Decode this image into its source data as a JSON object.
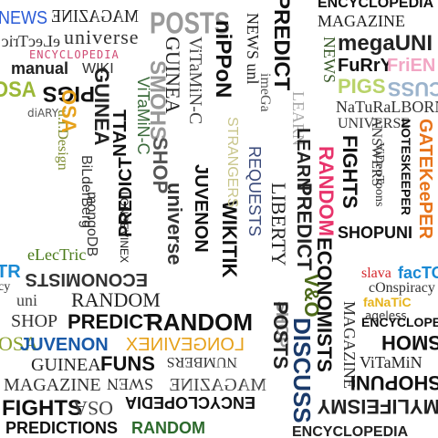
{
  "collage": {
    "words": {
      "news_tl": "NEWS",
      "magazine_tl": "MAGAZINE",
      "posts_top": "POSTS",
      "nippon": "niPPoN",
      "predict_top": "PREDICT",
      "encyclopedia_top": "ENCYCLOPEDIA",
      "electric_tl": "eLecTric",
      "universe_tl": "universe",
      "encyclopedia_pink": "ENCYCLOPEDIA",
      "manual": "manual",
      "wiki": "WIKI",
      "pigs_tl": "PIGS",
      "diary": "diARY",
      "osa": "OSA",
      "guinea_v": "GUINEA",
      "ttan_v": "TTAN",
      "vitamin_v1": "ViTaMiN-C",
      "vitamin_v2": "ViTaMiN-C",
      "bloatware": "bloatWaRe",
      "design": "u.I.Design",
      "bilderberg": "BiLderBerg",
      "mongodb": "mongoDB",
      "electric_v": "eLecTric",
      "predict_v": "PREDICT",
      "longevinex_v": "LONGEVINEX",
      "shop_v": "SHOP",
      "juvenon_v": "JUVENON",
      "universe_v": "universe",
      "wikitik": "WIKITIK",
      "strangers": "STRANGERS",
      "requests": "REQUESTS",
      "liberty": "LIBERTY",
      "news_unl": "NEWS unl",
      "imega": "imeGa",
      "shop_v2": "SHOP",
      "posts_v": "POSTS",
      "learn": "LEARN",
      "random_v": "RANDOM",
      "predict_v2": "PREDICT",
      "economists_v": "ECONOMISTS",
      "discuss_v": "DISCUSS",
      "vo": "V&O",
      "magazine_top": "MAGAZINE",
      "megauni": "megaUNI",
      "furry": "FuRrY",
      "frien": "FriEN",
      "pigs_r": "PIGS",
      "cuss": "CUSS",
      "naturalborn": "NaTuRaLBORN",
      "universe_r": "UNIVERSE",
      "answers": "ANSWERS",
      "fights_v": "FIGHTS",
      "videotoons": "ViDeoToons",
      "noteskeeper": "NOTESKEEPER",
      "gatekeeper": "GATEKeePER",
      "shopuni": "SHOPUNI",
      "economists_h": "ECONOMISTS",
      "uni_h": "uni",
      "random_h1": "RANDOM",
      "predict_h": "PREDICT",
      "random_h2": "RANDOM",
      "shop_h": "SHOP",
      "juvenon_h": "JUVENON",
      "longevinex_h": "LONGEVINEX",
      "guinea_h": "GUINEA",
      "funs": "FUNS",
      "numbers": "NUMBERS",
      "magazine_bl": "MAGAZINE",
      "swen": "SWEN",
      "magazine_b": "MAGAZINE",
      "encyclopedia_b": "ENCYCLOPEDIA",
      "fights_b": "FIGHTS",
      "osa_b": "OSA",
      "predictions": "PREDICTIONS",
      "random_b": "RANDOM",
      "slava": "slava",
      "factor": "facTOR",
      "conspiracy": "cOnspiracy",
      "fanatic": "faNaTiC",
      "ageless": "ageless",
      "encyclopedia_r": "ENCYCLOPEDIA",
      "smoh": "SMOH",
      "vitamin_r": "ViTaMiN",
      "shopuni_r": "SHOPUNI",
      "mylifeismy": "MYLIFEISMY",
      "encyclopedia_br": "ENCYCLOPEDIA",
      "magazine_v": "MAGAZINE",
      "tr": "TR",
      "cy": "cy",
      "smohs_v": "SMOHS"
    }
  }
}
